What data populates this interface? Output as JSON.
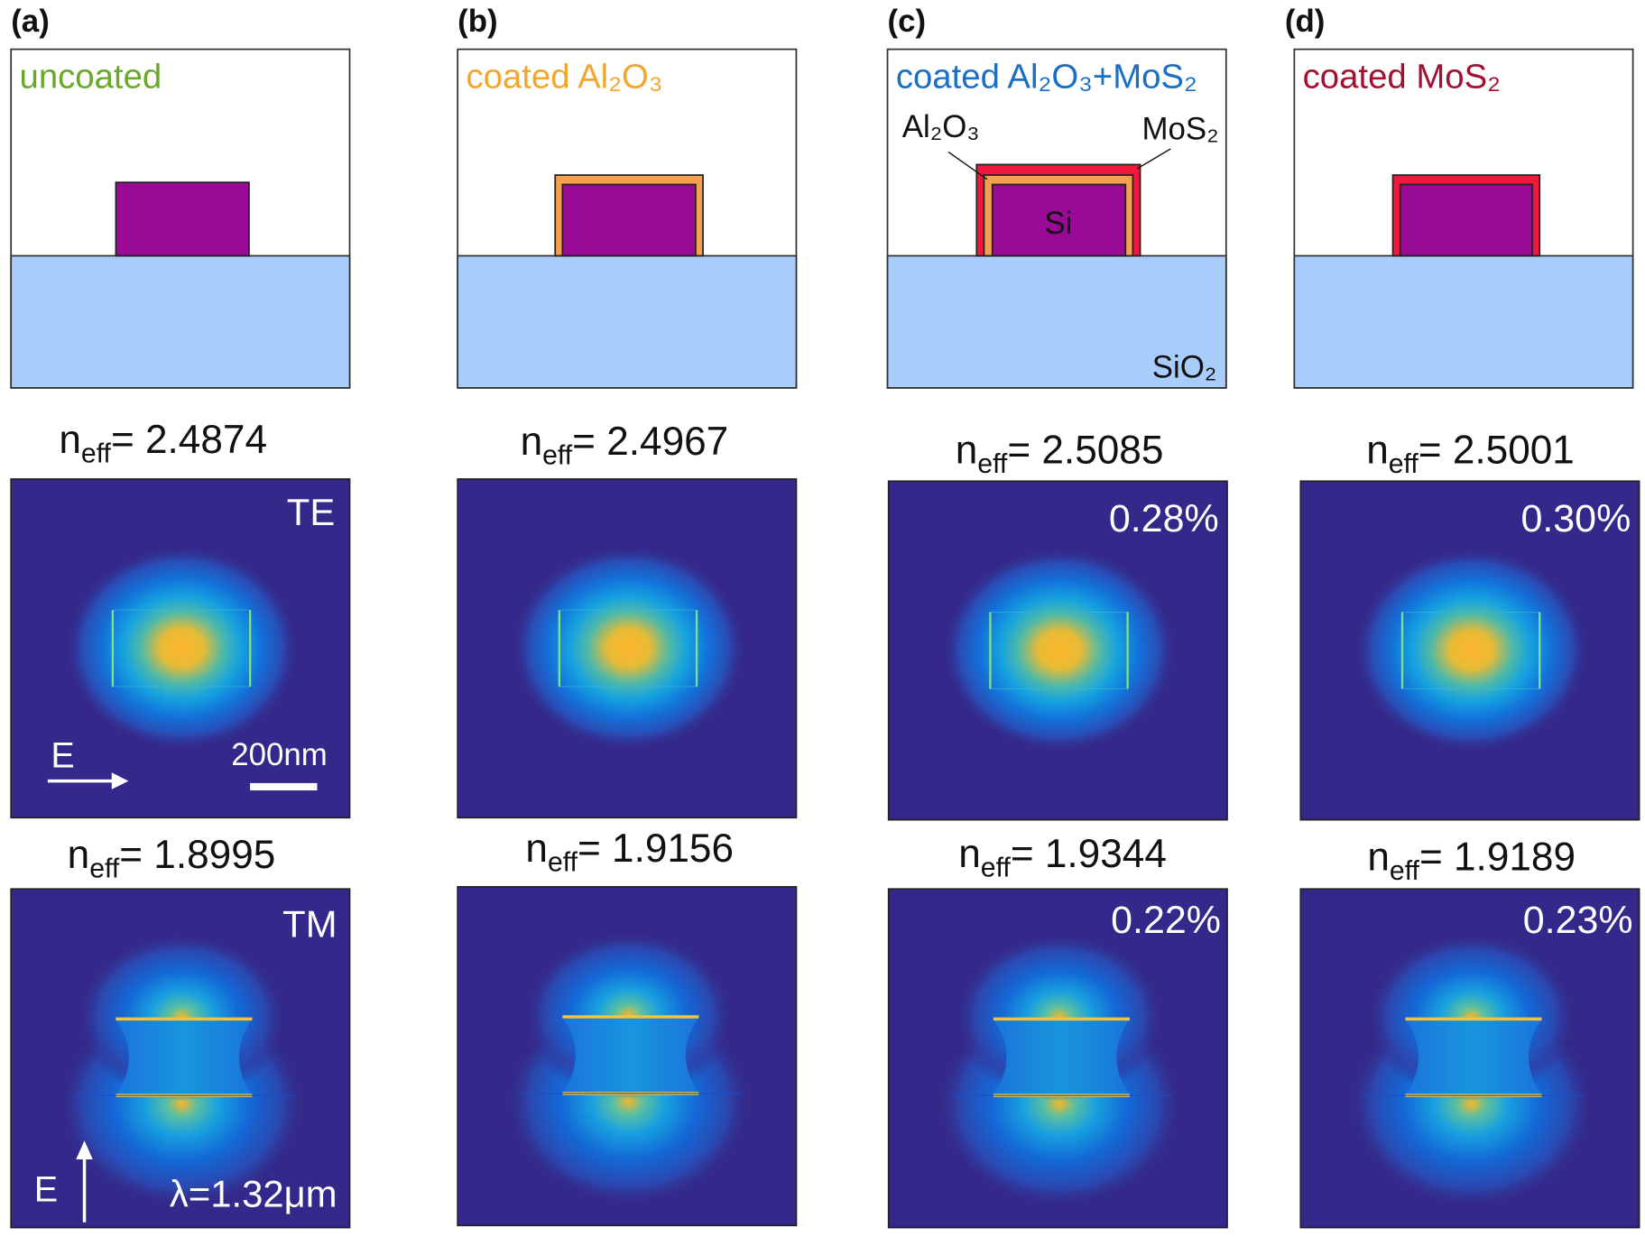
{
  "colors": {
    "waveguide_si": "#990a96",
    "substrate_sio2": "#a9cdfb",
    "al2o3_shell": "#f5a04e",
    "mos2_shell": "#f0183c",
    "field_background": "#34298a"
  },
  "neff_symbol": "n",
  "neff_subscript": "eff",
  "neff_equals": "= ",
  "columns": [
    {
      "panel": "(a)",
      "title": "uncoated",
      "title_color": "#6aa82a",
      "coating": "none",
      "te_neff": "2.4874",
      "tm_neff": "1.8995",
      "te_percent": "",
      "tm_percent": ""
    },
    {
      "panel": "(b)",
      "title": "coated Al₂O₃",
      "title_color": "#f2a62c",
      "coating": "al2o3",
      "te_neff": "2.4967",
      "tm_neff": "1.9156",
      "te_percent": "",
      "tm_percent": ""
    },
    {
      "panel": "(c)",
      "title": "coated Al₂O₃+MoS₂",
      "title_color": "#1a6fc4",
      "coating": "al2o3+mos2",
      "te_neff": "2.5085",
      "tm_neff": "1.9344",
      "te_percent": "0.28%",
      "tm_percent": "0.22%"
    },
    {
      "panel": "(d)",
      "title": "coated MoS₂",
      "title_color": "#a3102f",
      "coating": "mos2",
      "te_neff": "2.5001",
      "tm_neff": "1.9189",
      "te_percent": "0.30%",
      "tm_percent": "0.23%"
    }
  ],
  "labels": {
    "al2o3": "Al₂O₃",
    "mos2": "MoS₂",
    "si": "Si",
    "sio2": "SiO₂",
    "te": "TE",
    "tm": "TM",
    "e_field": "E",
    "scale_bar": "200nm",
    "wavelength": "λ=1.32μm"
  }
}
